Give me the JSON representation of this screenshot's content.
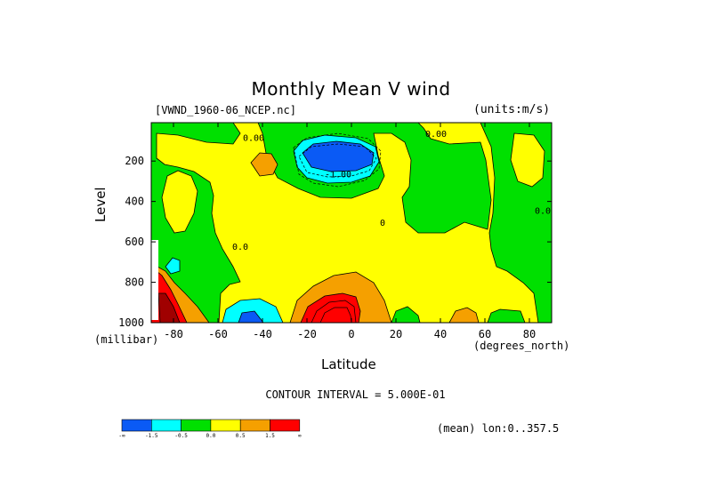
{
  "title": "Monthly Mean V wind",
  "dataset_label": "[VWND_1960-06_NCEP.nc]",
  "units_label": "(units:m/s)",
  "footer": {
    "contour_interval": "CONTOUR INTERVAL = 5.000E-01",
    "mean_label": "(mean) lon:0..357.5"
  },
  "colors": {
    "lt_neg1_5": "#0a5af5",
    "neg1_5_to_neg0_5": "#00ffff",
    "neg0_5_to_0": "#00e000",
    "0_to_0_5": "#ffff00",
    "0_5_to_1_5": "#f5a000",
    "gt_1_5": "#ff0000",
    "dark_core": "#a00000",
    "contour": "#000000"
  },
  "chart_data": {
    "type": "heatmap",
    "title": "Monthly Mean V wind",
    "xlabel": "Latitude",
    "xunits": "(degrees_north)",
    "ylabel": "Level",
    "yunits": "(millibar)",
    "xlim": [
      -90,
      90
    ],
    "ylim": [
      1000,
      10
    ],
    "x_ticks": [
      -80,
      -60,
      -40,
      -20,
      0,
      20,
      40,
      60,
      80
    ],
    "x_tick_labels": [
      "-80",
      "-60",
      "-40",
      "-20",
      "0",
      "20",
      "40",
      "60",
      "80"
    ],
    "y_ticks": [
      200,
      400,
      600,
      800,
      1000
    ],
    "y_tick_labels": [
      "200",
      "400",
      "600",
      "800",
      "1000"
    ],
    "contour_interval": 0.5,
    "contour_labels": [
      {
        "text": "0.00",
        "lat": -44,
        "lev": 100
      },
      {
        "text": "-1.00",
        "lat": -6,
        "lev": 280
      },
      {
        "text": "0.00",
        "lat": 38,
        "lev": 80
      },
      {
        "text": "0",
        "lat": 14,
        "lev": 520
      },
      {
        "text": "0.0",
        "lat": -50,
        "lev": 640
      },
      {
        "text": "0.0",
        "lat": 86,
        "lev": 460
      }
    ],
    "colorbar": {
      "labels": [
        "-∞",
        "-1.5",
        "-0.5",
        "0.0",
        "0.5",
        "1.5",
        "∞"
      ],
      "colors": [
        "#0a5af5",
        "#00ffff",
        "#00e000",
        "#ffff00",
        "#f5a000",
        "#ff0000"
      ]
    }
  }
}
